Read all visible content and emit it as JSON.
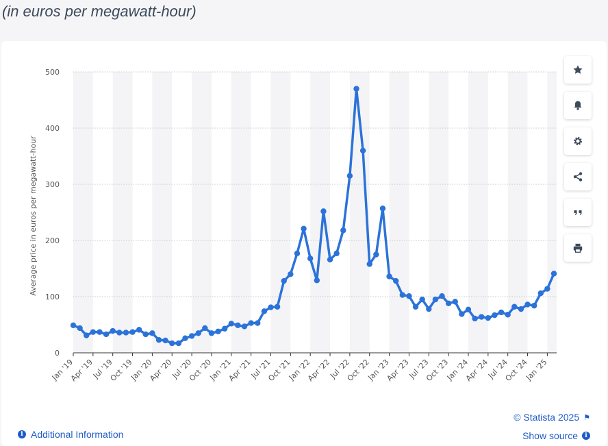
{
  "header": {
    "subtitle": "(in euros per megawatt-hour)"
  },
  "toolbar": {
    "items": [
      {
        "name": "star-icon"
      },
      {
        "name": "bell-icon"
      },
      {
        "name": "gear-icon"
      },
      {
        "name": "share-icon"
      },
      {
        "name": "quote-icon"
      },
      {
        "name": "print-icon"
      }
    ]
  },
  "footer": {
    "copyright": "© Statista 2025",
    "show_source": "Show source",
    "additional_info": "Additional Information"
  },
  "colors": {
    "line": "#2b73d9",
    "link": "#1e5cc8"
  },
  "chart_data": {
    "type": "line",
    "ylabel": "Average price in euros per megawatt-hour",
    "ylim": [
      0,
      500
    ],
    "yticks": [
      0,
      100,
      200,
      300,
      400,
      500
    ],
    "grid": true,
    "xtick_labels": [
      "Jan '19",
      "Apr '19",
      "Jul '19",
      "Oct '19",
      "Jan '20",
      "Apr '20",
      "Jul '20",
      "Oct '20",
      "Jan '21",
      "Apr '21",
      "Jul '21",
      "Oct '21",
      "Jan '22",
      "Apr '22",
      "Jul '22",
      "Oct '22",
      "Jan '23",
      "Apr '23",
      "Jul '23",
      "Oct '23",
      "Jan '24",
      "Apr '24",
      "Jul '24",
      "Oct '24",
      "Jan '25"
    ],
    "series": [
      {
        "values": [
          49,
          44,
          31,
          37,
          37,
          33,
          39,
          36,
          36,
          37,
          41,
          33,
          35,
          23,
          22,
          17,
          17,
          26,
          30,
          35,
          44,
          35,
          38,
          43,
          52,
          49,
          47,
          53,
          53,
          74,
          81,
          82,
          128,
          140,
          177,
          221,
          168,
          129,
          252,
          166,
          177,
          218,
          315,
          470,
          360,
          158,
          175,
          257,
          136,
          128,
          103,
          101,
          82,
          95,
          78,
          95,
          101,
          88,
          91,
          69,
          77,
          61,
          64,
          62,
          67,
          72,
          68,
          82,
          78,
          86,
          84,
          106,
          114,
          141
        ]
      }
    ]
  }
}
